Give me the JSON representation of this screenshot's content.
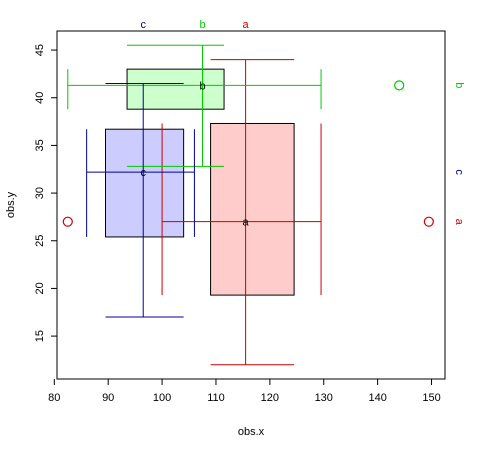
{
  "chart_data": {
    "type": "bivariate-boxplot",
    "xlabel": "obs.x",
    "ylabel": "obs.y",
    "xlim": [
      80.5,
      152.5
    ],
    "ylim": [
      10.5,
      47
    ],
    "x_ticks": [
      80,
      90,
      100,
      110,
      120,
      130,
      140,
      150
    ],
    "y_ticks": [
      15,
      20,
      25,
      30,
      35,
      40,
      45
    ],
    "groups": [
      {
        "name": "a",
        "color": "#cc0000",
        "fill": "#ffcccc",
        "x_box": {
          "q1": 109,
          "median": 115.5,
          "q3": 124.5,
          "whisker_low": 100,
          "whisker_high": 129.5
        },
        "y_box": {
          "q1": 19.3,
          "median": 27,
          "q3": 37.3,
          "whisker_low": 12,
          "whisker_high": 44
        },
        "outliers": [
          {
            "x": 82.5,
            "y": 27
          },
          {
            "x": 149.5,
            "y": 27
          }
        ]
      },
      {
        "name": "b",
        "color": "#00cc00",
        "fill": "#ccffcc",
        "x_box": {
          "q1": 93.5,
          "median": 107.5,
          "q3": 111.5,
          "whisker_low": 82.5,
          "whisker_high": 129.5
        },
        "y_box": {
          "q1": 38.8,
          "median": 41.3,
          "q3": 43,
          "whisker_low": 32.8,
          "whisker_high": 45.5
        },
        "outliers": [
          {
            "x": 144,
            "y": 41.3
          }
        ]
      },
      {
        "name": "c",
        "color": "#000099",
        "fill": "#ccccff",
        "x_box": {
          "q1": 89.5,
          "median": 96.5,
          "q3": 104,
          "whisker_low": 86,
          "whisker_high": 106
        },
        "y_box": {
          "q1": 25.4,
          "median": 32.2,
          "q3": 36.7,
          "whisker_low": 17,
          "whisker_high": 41.5
        },
        "outliers": []
      }
    ]
  }
}
